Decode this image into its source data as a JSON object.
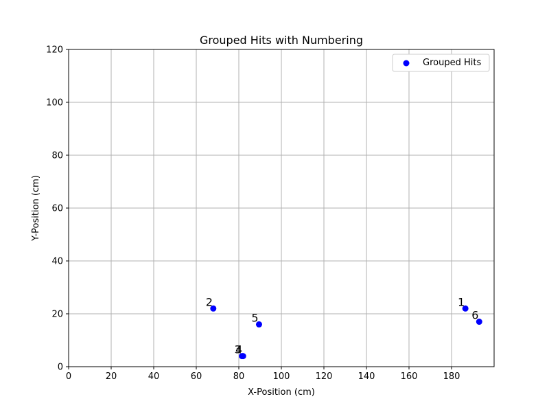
{
  "chart_data": {
    "type": "scatter",
    "title": "Grouped Hits with Numbering",
    "xlabel": "X-Position (cm)",
    "ylabel": "Y-Position (cm)",
    "xlim": [
      0,
      200
    ],
    "ylim": [
      0,
      120
    ],
    "x_ticks": [
      0,
      20,
      40,
      60,
      80,
      100,
      120,
      140,
      160,
      180
    ],
    "y_ticks": [
      0,
      20,
      40,
      60,
      80,
      100,
      120
    ],
    "grid": true,
    "legend": {
      "position": "top-right",
      "entries": [
        "Grouped Hits"
      ]
    },
    "series": [
      {
        "name": "Grouped Hits",
        "color": "#0000ff",
        "marker": "circle",
        "points": [
          {
            "label": "1",
            "x": 186.5,
            "y": 22.0
          },
          {
            "label": "2",
            "x": 68.0,
            "y": 22.0
          },
          {
            "label": "3",
            "x": 81.5,
            "y": 4.0
          },
          {
            "label": "4",
            "x": 82.0,
            "y": 4.0
          },
          {
            "label": "5",
            "x": 89.5,
            "y": 16.0
          },
          {
            "label": "6",
            "x": 193.0,
            "y": 17.0
          }
        ]
      }
    ]
  }
}
